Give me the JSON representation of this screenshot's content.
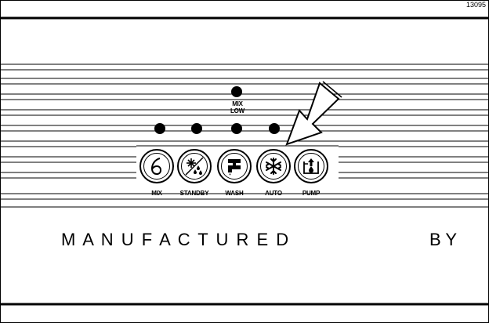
{
  "figure_id": "13095",
  "indicator": {
    "label_line1": "MIX",
    "label_line2": "LOW"
  },
  "buttons": [
    {
      "label": "MIX",
      "icon": "mix-icon"
    },
    {
      "label": "STANDBY",
      "icon": "standby-icon"
    },
    {
      "label": "WASH",
      "icon": "wash-icon"
    },
    {
      "label": "AUTO",
      "icon": "snowflake-icon"
    },
    {
      "label": "PUMP",
      "icon": "pump-icon"
    }
  ],
  "manufactured_text": "M A N U F A C T U R E D",
  "by_text": "B Y"
}
